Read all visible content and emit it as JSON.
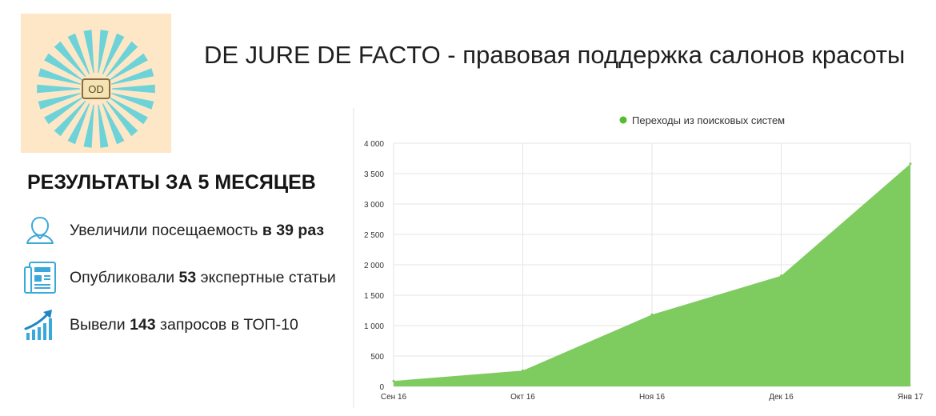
{
  "header": {
    "title": "DE JURE DE FACTO - правовая поддержка салонов красоты",
    "logo_text": "OD"
  },
  "results": {
    "heading": "РЕЗУЛЬТАТЫ ЗА 5 МЕСЯЦЕВ",
    "items": [
      {
        "icon": "user-icon",
        "prefix": "Увеличили посещаемость ",
        "highlight": "в 39 раз",
        "suffix": ""
      },
      {
        "icon": "newspaper-icon",
        "prefix": "Опубликовали ",
        "highlight": "53",
        "suffix": " экспертные статьи"
      },
      {
        "icon": "growth-chart-icon",
        "prefix": "Вывели ",
        "highlight": "143",
        "suffix": " запросов в ТОП-10"
      }
    ]
  },
  "colors": {
    "logo_background": "#fde7c6",
    "logo_rays": "#6dd3d8",
    "icon_blue": "#3aa9da",
    "series_fill": "#7ecb5f",
    "legend_dot": "#55bb30"
  },
  "chart_data": {
    "type": "area",
    "title": "",
    "xlabel": "",
    "ylabel": "",
    "x": [
      "Сен 16",
      "Окт 16",
      "Ноя 16",
      "Дек 16",
      "Янв 17"
    ],
    "series": [
      {
        "name": "Переходы из поисковых систем",
        "values": [
          90,
          260,
          1180,
          1820,
          3660
        ]
      }
    ],
    "ylim": [
      0,
      4000
    ],
    "yticks": [
      0,
      500,
      1000,
      1500,
      2000,
      2500,
      3000,
      3500,
      4000
    ],
    "ytick_labels": [
      "0",
      "500",
      "1 000",
      "1 500",
      "2 000",
      "2 500",
      "3 000",
      "3 500",
      "4 000"
    ],
    "grid": true,
    "legend": "top-center"
  }
}
